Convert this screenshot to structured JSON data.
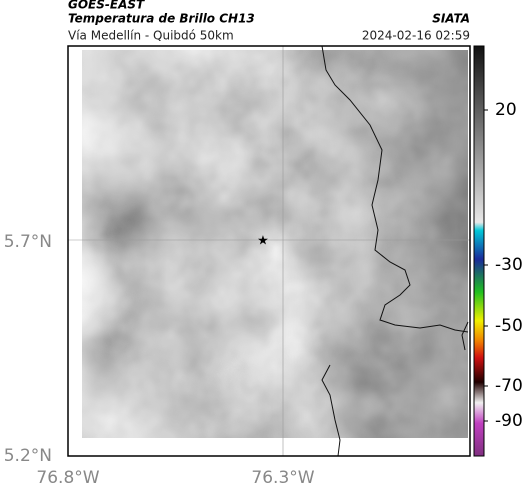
{
  "header": {
    "satellite": "GOES-EAST",
    "product": "Temperatura de Brillo CH13",
    "agency": "SIATA",
    "region": "Vía Medellín - Quibdó 50km",
    "timestamp": "2024-02-16 02:59"
  },
  "map": {
    "lat_labels": [
      "5.7°N",
      "5.2°N"
    ],
    "lon_labels": [
      "76.8°W",
      "76.3°W"
    ]
  },
  "colorbar": {
    "ticks": [
      20,
      -30,
      -50,
      -70,
      -90
    ]
  }
}
